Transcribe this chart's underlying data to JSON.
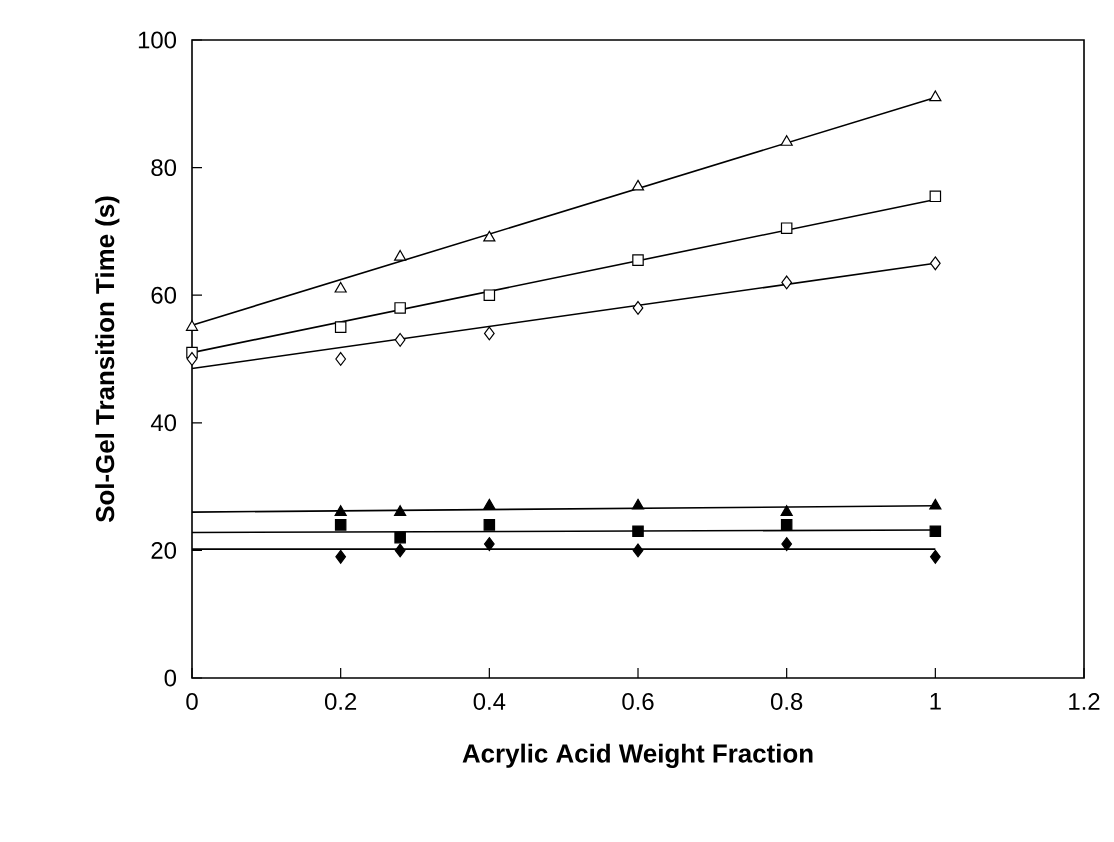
{
  "chart_data": {
    "type": "scatter",
    "xlabel": "Acrylic Acid Weight Fraction",
    "ylabel": "Sol-Gel Transition Time (s)",
    "xlim": [
      0,
      1.2
    ],
    "ylim": [
      0,
      100
    ],
    "xticks": [
      0,
      0.2,
      0.4,
      0.6,
      0.8,
      1,
      1.2
    ],
    "yticks": [
      0,
      20,
      40,
      60,
      80,
      100
    ],
    "grid": false,
    "x": [
      0,
      0.2,
      0.28,
      0.4,
      0.6,
      0.8,
      1
    ],
    "series": [
      {
        "color": "#ffffff",
        "marker": "triangle",
        "values": [
          55,
          61,
          66,
          69,
          77,
          84,
          91
        ]
      },
      {
        "color": "#ffffff",
        "marker": "square",
        "values": [
          51,
          55,
          58,
          60,
          65.5,
          70.5,
          75.5
        ]
      },
      {
        "color": "#ffffff",
        "marker": "diamond",
        "values": [
          50,
          50,
          53,
          54,
          58,
          62,
          65
        ]
      },
      {
        "color": "#000000",
        "marker": "triangle",
        "x": [
          0.2,
          0.28,
          0.4,
          0.6,
          0.8,
          1
        ],
        "values": [
          26,
          26,
          27,
          27,
          26,
          27
        ]
      },
      {
        "color": "#000000",
        "marker": "square",
        "x": [
          0.2,
          0.28,
          0.4,
          0.6,
          0.8,
          1
        ],
        "values": [
          24,
          22,
          24,
          23,
          24,
          23
        ]
      },
      {
        "color": "#000000",
        "marker": "diamond",
        "x": [
          0.2,
          0.28,
          0.4,
          0.6,
          0.8,
          1
        ],
        "values": [
          19,
          20,
          21,
          20,
          21,
          19
        ]
      },
      {
        "type": "line",
        "color": "#000000",
        "marker": "none",
        "x": [
          0,
          1
        ],
        "values": [
          55.3,
          91
        ]
      },
      {
        "type": "line",
        "color": "#000000",
        "marker": "none",
        "x": [
          0,
          1
        ],
        "values": [
          51,
          75
        ]
      },
      {
        "type": "line",
        "color": "#000000",
        "marker": "none",
        "x": [
          0,
          1
        ],
        "values": [
          48.5,
          65
        ]
      },
      {
        "type": "line",
        "color": "#000000",
        "marker": "none",
        "x": [
          0,
          1
        ],
        "values": [
          26,
          27
        ]
      },
      {
        "type": "line",
        "color": "#000000",
        "marker": "none",
        "x": [
          0,
          1
        ],
        "values": [
          22.8,
          23.2
        ]
      },
      {
        "type": "line",
        "color": "#000000",
        "marker": "none",
        "x": [
          0,
          1
        ],
        "values": [
          20.2,
          20.2
        ]
      }
    ]
  }
}
